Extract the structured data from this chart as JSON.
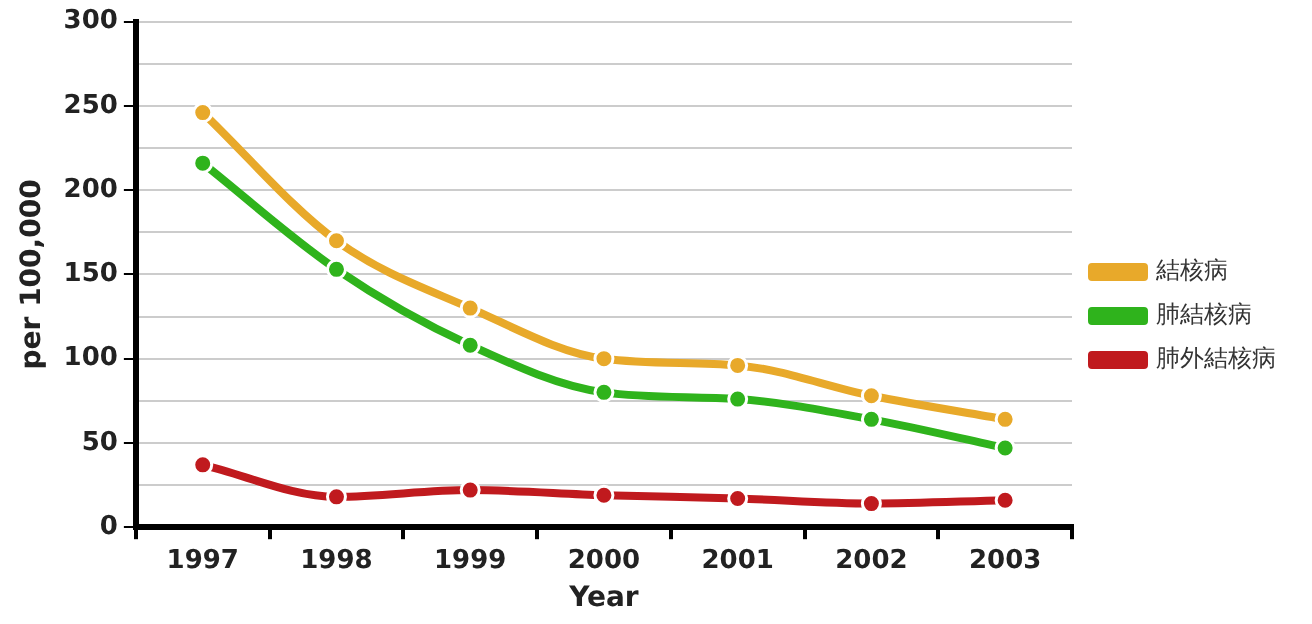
{
  "chart_data": {
    "type": "line",
    "xlabel": "Year",
    "ylabel": "per 100,000",
    "categories": [
      "1997",
      "1998",
      "1999",
      "2000",
      "2001",
      "2002",
      "2003"
    ],
    "series": [
      {
        "name": "結核病",
        "color": "#e8a92a",
        "values": [
          246,
          170,
          130,
          100,
          96,
          78,
          64
        ]
      },
      {
        "name": "肺結核病",
        "color": "#2fb31c",
        "values": [
          216,
          153,
          108,
          80,
          76,
          64,
          47
        ]
      },
      {
        "name": "肺外結核病",
        "color": "#c01a1e",
        "values": [
          37,
          18,
          22,
          19,
          17,
          14,
          16
        ]
      }
    ],
    "ylim": [
      0,
      300
    ],
    "yticks": [
      0,
      {
        "value": 25,
        "label": null
      },
      50,
      {
        "value": 75,
        "label": null
      },
      100,
      {
        "value": 125,
        "label": null
      },
      150,
      {
        "value": 175,
        "label": null
      },
      200,
      {
        "value": 225,
        "label": null
      },
      250,
      {
        "value": 275,
        "label": null
      },
      300
    ],
    "grid": "y",
    "legend": "right",
    "marker": "circle",
    "line_style": "solid"
  }
}
